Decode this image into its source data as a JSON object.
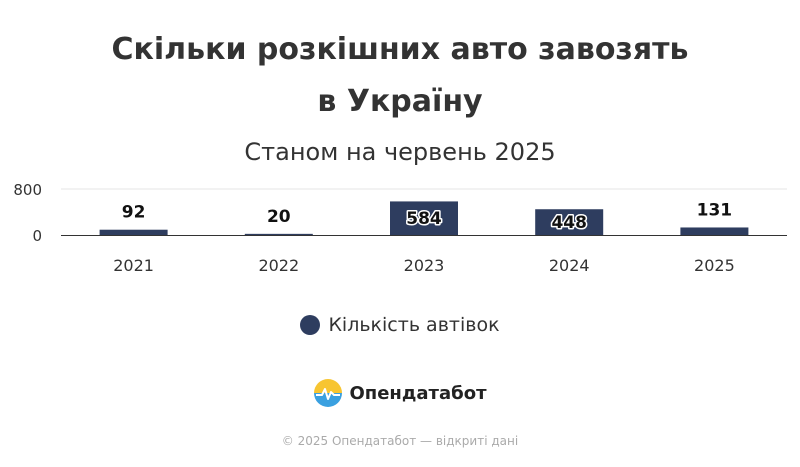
{
  "header": {
    "title_line1": "Скільки розкішних авто завозять",
    "title_line2": "в Україну",
    "subtitle": "Станом на червень 2025"
  },
  "chart_data": {
    "type": "bar",
    "categories": [
      "2021",
      "2022",
      "2023",
      "2024",
      "2025"
    ],
    "series": [
      {
        "name": "Кількість автівок",
        "values": [
          92,
          20,
          584,
          448,
          131
        ],
        "color": "#2e3d5f"
      }
    ],
    "data_labels": [
      "92",
      "20",
      "584",
      "448",
      "131"
    ],
    "ylim": [
      0,
      800
    ],
    "yticks": [
      "0",
      "800"
    ],
    "grid": true,
    "legend_position": "bottom"
  },
  "legend": {
    "label": "Кількість автівок",
    "color": "#2e3d5f"
  },
  "branding": {
    "logo_text": "Опендатабот",
    "logo_icon": "opendatabot-logo-icon"
  },
  "footer": {
    "text": "© 2025 Опендатабот — відкриті дані"
  }
}
